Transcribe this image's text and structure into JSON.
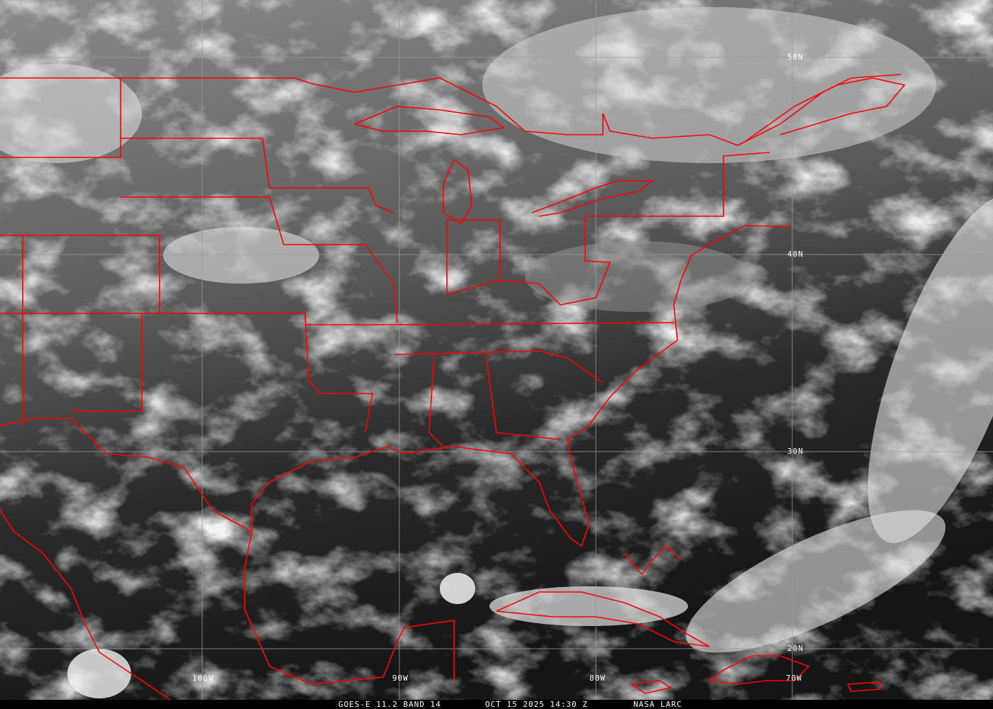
{
  "caption": {
    "satellite": "GOES-E 11.2 BAND 14",
    "datetime": "OCT 15 2025 14:30 Z",
    "credit": "NASA LARC"
  },
  "grid": {
    "latitudes": [
      "50N",
      "40N",
      "30N",
      "20N"
    ],
    "longitudes": [
      "100W",
      "90W",
      "80W",
      "70W"
    ]
  },
  "colors": {
    "borders": "#ff0000",
    "gridlines": "#9a9a9a",
    "text": "#ffffff"
  }
}
